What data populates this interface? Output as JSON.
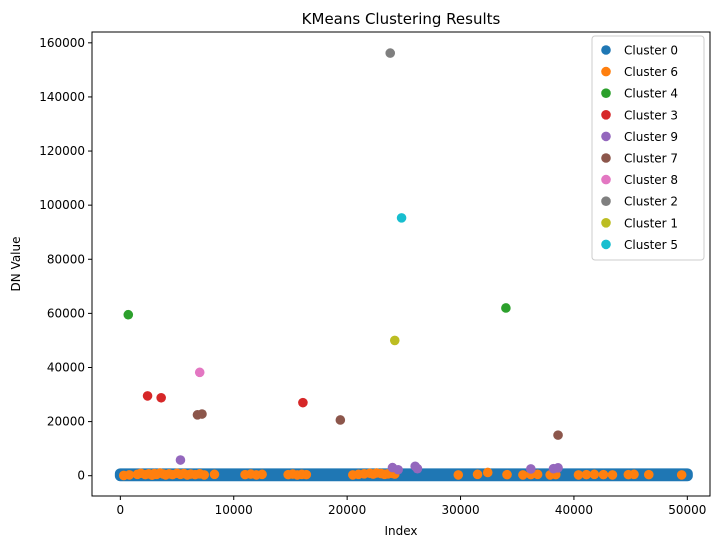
{
  "chart_data": {
    "type": "scatter",
    "title": "KMeans Clustering Results",
    "xlabel": "Index",
    "ylabel": "DN Value",
    "xlim": [
      -2500,
      52000
    ],
    "ylim": [
      -7500,
      164000
    ],
    "xticks": [
      0,
      10000,
      20000,
      30000,
      40000,
      50000
    ],
    "yticks": [
      0,
      20000,
      40000,
      60000,
      80000,
      100000,
      120000,
      140000,
      160000
    ],
    "grid": false,
    "legend_position": "top-right",
    "series": [
      {
        "name": "Cluster 0",
        "color": "#1f77b4",
        "band": [
          0,
          50000,
          0,
          700
        ]
      },
      {
        "name": "Cluster 6",
        "color": "#ff7f0e",
        "points": [
          [
            300,
            100
          ],
          [
            800,
            300
          ],
          [
            1500,
            500
          ],
          [
            1800,
            900
          ],
          [
            2200,
            400
          ],
          [
            2500,
            700
          ],
          [
            2800,
            200
          ],
          [
            3000,
            800
          ],
          [
            3200,
            500
          ],
          [
            3500,
            1000
          ],
          [
            3800,
            600
          ],
          [
            4000,
            300
          ],
          [
            4300,
            700
          ],
          [
            4600,
            400
          ],
          [
            5000,
            900
          ],
          [
            5300,
            500
          ],
          [
            5600,
            800
          ],
          [
            5900,
            300
          ],
          [
            6200,
            600
          ],
          [
            6600,
            400
          ],
          [
            7000,
            700
          ],
          [
            7400,
            300
          ],
          [
            8300,
            500
          ],
          [
            11000,
            400
          ],
          [
            11500,
            600
          ],
          [
            12000,
            300
          ],
          [
            12500,
            500
          ],
          [
            14800,
            400
          ],
          [
            15200,
            600
          ],
          [
            15600,
            300
          ],
          [
            16000,
            500
          ],
          [
            16400,
            400
          ],
          [
            20500,
            300
          ],
          [
            21000,
            500
          ],
          [
            21500,
            700
          ],
          [
            22000,
            900
          ],
          [
            22300,
            600
          ],
          [
            22600,
            1000
          ],
          [
            23000,
            800
          ],
          [
            23300,
            500
          ],
          [
            23600,
            700
          ],
          [
            23900,
            900
          ],
          [
            24200,
            600
          ],
          [
            29800,
            300
          ],
          [
            31500,
            500
          ],
          [
            32400,
            1200
          ],
          [
            34100,
            400
          ],
          [
            35500,
            300
          ],
          [
            36200,
            400
          ],
          [
            36800,
            500
          ],
          [
            37900,
            300
          ],
          [
            38400,
            400
          ],
          [
            40400,
            300
          ],
          [
            41100,
            400
          ],
          [
            41800,
            500
          ],
          [
            42600,
            400
          ],
          [
            43400,
            300
          ],
          [
            44800,
            400
          ],
          [
            45300,
            500
          ],
          [
            46600,
            400
          ],
          [
            49500,
            300
          ]
        ]
      },
      {
        "name": "Cluster 4",
        "color": "#2ca02c",
        "points": [
          [
            700,
            59500
          ],
          [
            34000,
            62000
          ]
        ]
      },
      {
        "name": "Cluster 3",
        "color": "#d62728",
        "points": [
          [
            2400,
            29500
          ],
          [
            3600,
            28800
          ],
          [
            16100,
            27000
          ]
        ]
      },
      {
        "name": "Cluster 9",
        "color": "#9467bd",
        "points": [
          [
            5300,
            5800
          ],
          [
            24000,
            3000
          ],
          [
            24500,
            2200
          ],
          [
            26000,
            3500
          ],
          [
            26200,
            2600
          ],
          [
            36200,
            2500
          ],
          [
            38200,
            2600
          ],
          [
            38600,
            2900
          ]
        ]
      },
      {
        "name": "Cluster 7",
        "color": "#8c564b",
        "points": [
          [
            6800,
            22500
          ],
          [
            7200,
            22800
          ],
          [
            19400,
            20600
          ],
          [
            38600,
            15000
          ]
        ]
      },
      {
        "name": "Cluster 8",
        "color": "#e377c2",
        "points": [
          [
            7000,
            38200
          ]
        ]
      },
      {
        "name": "Cluster 2",
        "color": "#7f7f7f",
        "points": [
          [
            23800,
            156200
          ]
        ]
      },
      {
        "name": "Cluster 1",
        "color": "#bcbd22",
        "points": [
          [
            24200,
            50000
          ]
        ]
      },
      {
        "name": "Cluster 5",
        "color": "#17becf",
        "points": [
          [
            24800,
            95300
          ]
        ]
      }
    ]
  }
}
